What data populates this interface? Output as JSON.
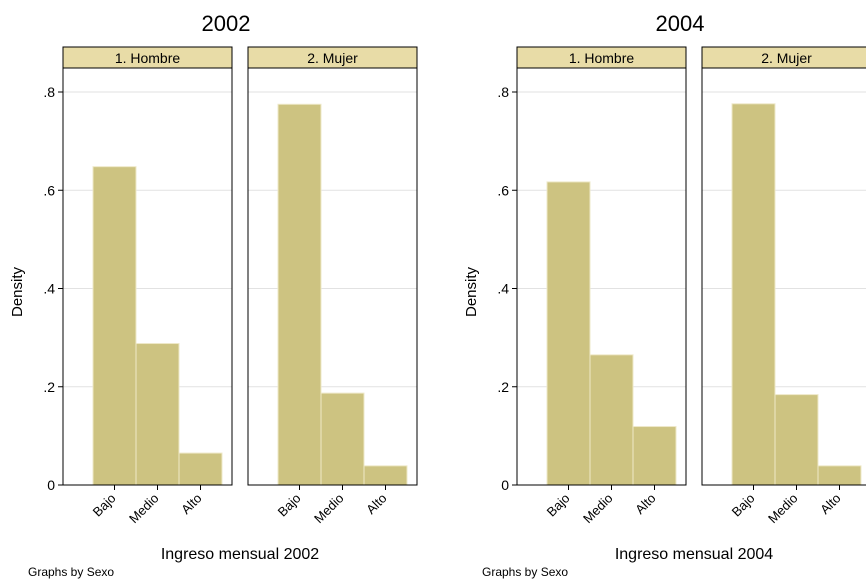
{
  "chart_data": [
    {
      "type": "bar",
      "title": "2002",
      "xlabel": "Ingreso mensual 2002",
      "ylabel": "Density",
      "note": "Graphs by Sexo",
      "categories": [
        "Bajo",
        "Medio",
        "Alto"
      ],
      "ylim": [
        0,
        0.8
      ],
      "yticks": [
        0,
        0.2,
        0.4,
        0.6,
        0.8
      ],
      "ytick_labels": [
        "0",
        ".2",
        ".4",
        ".6",
        ".8"
      ],
      "grid": true,
      "series": [
        {
          "name": "1. Hombre",
          "values": [
            0.648,
            0.288,
            0.065
          ]
        },
        {
          "name": "2. Mujer",
          "values": [
            0.775,
            0.187,
            0.039
          ]
        }
      ]
    },
    {
      "type": "bar",
      "title": "2004",
      "xlabel": "Ingreso mensual 2004",
      "ylabel": "Density",
      "note": "Graphs by Sexo",
      "categories": [
        "Bajo",
        "Medio",
        "Alto"
      ],
      "ylim": [
        0,
        0.8
      ],
      "yticks": [
        0,
        0.2,
        0.4,
        0.6,
        0.8
      ],
      "ytick_labels": [
        "0",
        ".2",
        ".4",
        ".6",
        ".8"
      ],
      "grid": true,
      "series": [
        {
          "name": "1. Hombre",
          "values": [
            0.617,
            0.265,
            0.119
          ]
        },
        {
          "name": "2. Mujer",
          "values": [
            0.776,
            0.184,
            0.039
          ]
        }
      ]
    }
  ],
  "colors": {
    "bar_fill": "#cdc381",
    "bar_edge": "#eee8c8",
    "strip_fill": "#e8dca7",
    "grid": "#e2e2e2",
    "frame": "#000000"
  }
}
